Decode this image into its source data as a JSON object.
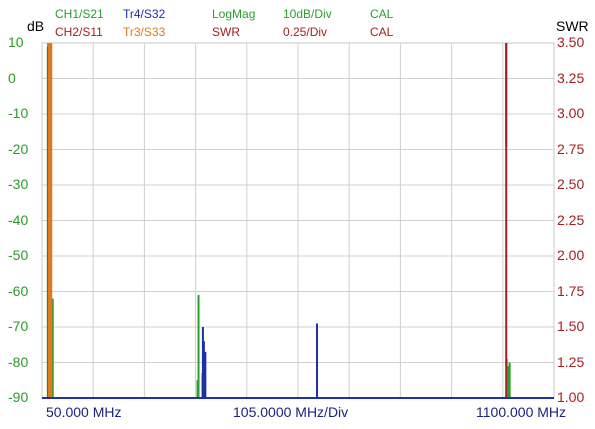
{
  "header": {
    "row1": [
      {
        "text": "CH1/S21",
        "color": "#2aa02a"
      },
      {
        "text": "Tr4/S32",
        "color": "#1f2fa8"
      },
      {
        "text": "LogMag",
        "color": "#2aa02a"
      },
      {
        "text": "10dB/Div",
        "color": "#2aa02a"
      },
      {
        "text": "CAL",
        "color": "#2aa02a"
      }
    ],
    "row2": [
      {
        "text": "CH2/S11",
        "color": "#a52020"
      },
      {
        "text": "Tr3/S33",
        "color": "#e07a20"
      },
      {
        "text": "SWR",
        "color": "#a52020"
      },
      {
        "text": "0.25/Div",
        "color": "#a52020"
      },
      {
        "text": "CAL",
        "color": "#a52020"
      }
    ]
  },
  "left_axis": {
    "unit": "dB",
    "color": "#2a9a2a"
  },
  "right_axis": {
    "unit": "SWR",
    "color": "#a52020"
  },
  "x_labels": {
    "start": "50.000 MHz",
    "scale": "105.0000 MHz/Div",
    "stop": "1100.000 MHz",
    "color": "#1a237e"
  },
  "chart_data": {
    "type": "line",
    "x_unit": "MHz",
    "xlim": [
      50,
      1100
    ],
    "y_left": {
      "label": "dB",
      "ylim": [
        -90,
        10
      ],
      "ticks": [
        "10",
        "0",
        "-10",
        "-20",
        "-30",
        "-40",
        "-50",
        "-60",
        "-70",
        "-80",
        "-90"
      ]
    },
    "y_right": {
      "label": "SWR",
      "ylim": [
        1.0,
        3.5
      ],
      "ticks": [
        "3.50",
        "3.25",
        "3.00",
        "2.75",
        "2.50",
        "2.25",
        "2.00",
        "1.75",
        "1.50",
        "1.25",
        "1.00"
      ]
    },
    "grid": true,
    "series": [
      {
        "name": "CH1/S21",
        "color": "#2aa02a",
        "axis": "left",
        "baseline": -90,
        "spikes": [
          [
            62,
            9
          ],
          [
            64,
            10
          ],
          [
            65,
            8
          ],
          [
            66,
            7
          ],
          [
            68,
            10
          ],
          [
            72,
            -62
          ],
          [
            369,
            -85
          ],
          [
            371,
            -61
          ],
          [
            379,
            -83
          ],
          [
            1003,
            -79
          ],
          [
            1007,
            -81
          ],
          [
            1009,
            -80
          ]
        ]
      },
      {
        "name": "CH2/S11",
        "color": "#a52020",
        "axis": "right",
        "baseline": 1.0,
        "spikes": [
          [
            63,
            3.5
          ],
          [
            66,
            3.5
          ],
          [
            68,
            3.5
          ],
          [
            1002,
            3.5
          ]
        ],
        "segments": [
          [
            1002,
            3.5,
            1002,
            2.77
          ]
        ]
      },
      {
        "name": "Tr3/S33",
        "color": "#e07a20",
        "axis": "left",
        "baseline": -90,
        "spikes": [
          [
            64,
            10
          ],
          [
            66,
            10
          ],
          [
            69,
            10
          ]
        ]
      },
      {
        "name": "Tr4/S32",
        "color": "#1f2fa8",
        "axis": "left",
        "baseline": -90,
        "spikes": [
          [
            380,
            -70
          ],
          [
            382,
            -74
          ],
          [
            385,
            -77
          ],
          [
            614,
            -69
          ]
        ]
      }
    ]
  }
}
